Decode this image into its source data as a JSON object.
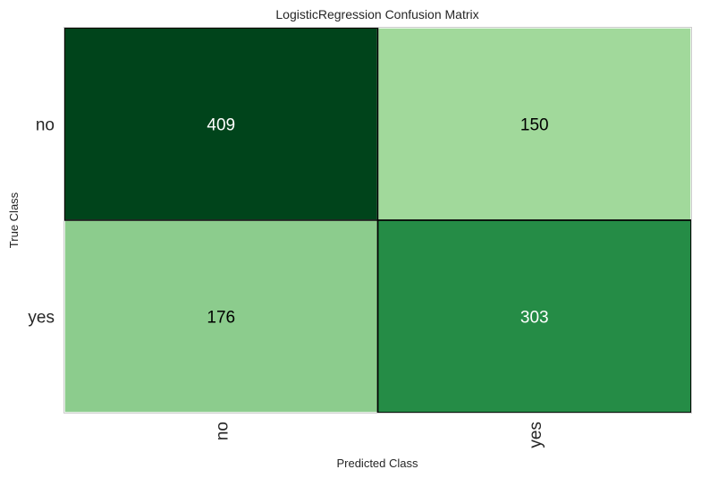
{
  "chart_data": {
    "type": "heatmap",
    "title": "LogisticRegression Confusion Matrix",
    "xlabel": "Predicted Class",
    "ylabel": "True Class",
    "x_categories": [
      "no",
      "yes"
    ],
    "y_categories": [
      "no",
      "yes"
    ],
    "values": [
      [
        409,
        150
      ],
      [
        176,
        303
      ]
    ],
    "value_range": [
      150,
      409
    ],
    "colormap": "Greens",
    "colors": {
      "high": "#00441b",
      "mid": "#238b45",
      "low": "#a1d99b",
      "text_dark": "#000000",
      "text_light": "#ffffff"
    }
  }
}
